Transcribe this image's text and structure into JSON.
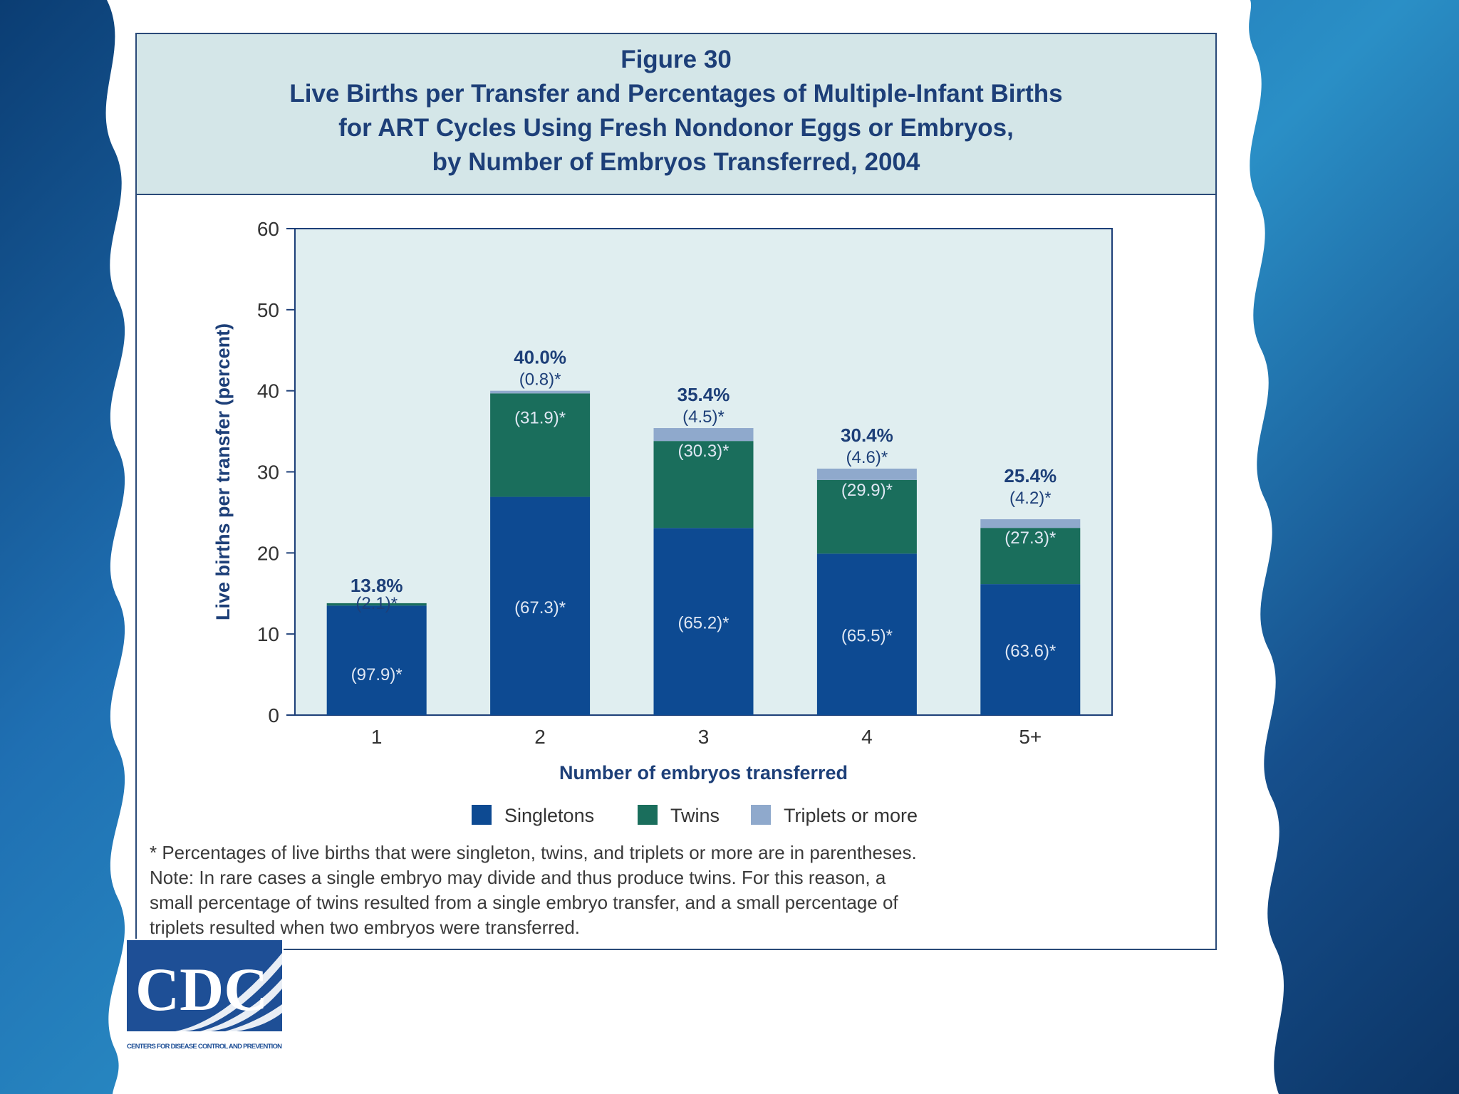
{
  "figure": {
    "number": "Figure 30",
    "title_lines": [
      "Live Births per Transfer and Percentages of Multiple-Infant Births",
      "for ART Cycles Using Fresh Nondonor Eggs or Embryos,",
      "by Number of Embryos Transferred, 2004"
    ]
  },
  "chart_data": {
    "type": "bar",
    "stacked": true,
    "title": "Live Births per Transfer and Percentages of Multiple-Infant Births for ART Cycles Using Fresh Nondonor Eggs or Embryos, by Number of Embryos Transferred, 2004",
    "xlabel": "Number of embryos transferred",
    "ylabel": "Live births per transfer (percent)",
    "ylim": [
      0,
      60
    ],
    "yticks": [
      0,
      10,
      20,
      30,
      40,
      50,
      60
    ],
    "categories": [
      "1",
      "2",
      "3",
      "4",
      "5+"
    ],
    "totals": [
      13.8,
      40.0,
      35.4,
      30.4,
      25.4
    ],
    "total_labels": [
      "13.8%",
      "40.0%",
      "35.4%",
      "30.4%",
      "25.4%"
    ],
    "series": [
      {
        "name": "Singletons",
        "color": "#0d4a92",
        "share_pct": [
          97.9,
          67.3,
          65.2,
          65.5,
          63.6
        ],
        "labels": [
          "(97.9)*",
          "(67.3)*",
          "(65.2)*",
          "(65.5)*",
          "(63.6)*"
        ]
      },
      {
        "name": "Twins",
        "color": "#1a6e5c",
        "share_pct": [
          2.1,
          31.9,
          30.3,
          29.9,
          27.3
        ],
        "labels": [
          "(2.1)*",
          "(31.9)*",
          "(30.3)*",
          "(29.9)*",
          "(27.3)*"
        ]
      },
      {
        "name": "Triplets or more",
        "color": "#8fa9cc",
        "share_pct": [
          0.0,
          0.8,
          4.5,
          4.6,
          4.2
        ],
        "labels": [
          "",
          "(0.8)*",
          "(4.5)*",
          "(4.6)*",
          "(4.2)*"
        ]
      }
    ],
    "legend_position": "bottom",
    "plot_background": "#e0eef0"
  },
  "footnote": [
    "* Percentages of live births that were singleton, twins, and triplets or more are in parentheses.",
    "Note: In rare cases a single embryo may divide and thus produce twins. For this reason, a",
    "small percentage of twins resulted from a single embryo transfer, and a small percentage of",
    "triplets resulted when two embryos were transferred."
  ],
  "logo": {
    "text": "CDC",
    "subtitle": "CENTERS FOR DISEASE CONTROL AND PREVENTION"
  }
}
